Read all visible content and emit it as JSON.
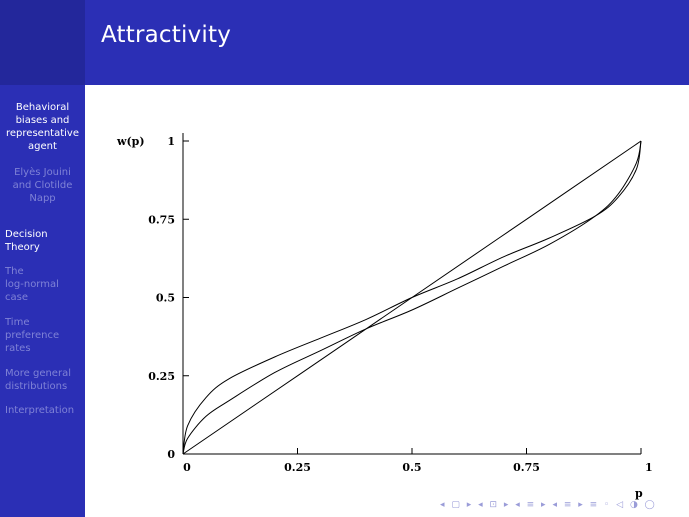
{
  "frame": {
    "title": "Attractivity"
  },
  "sidebar": {
    "talk_title": [
      "Behavioral",
      "biases and",
      "representative",
      "agent"
    ],
    "authors": [
      "Elyès Jouini",
      "and Clotilde",
      "Napp"
    ],
    "sections": [
      {
        "lines": [
          "Decision",
          "Theory"
        ],
        "active": true
      },
      {
        "lines": [
          "The",
          "log-normal",
          "case"
        ],
        "active": false
      },
      {
        "lines": [
          "Time",
          "preference",
          "rates"
        ],
        "active": false
      },
      {
        "lines": [
          "More general",
          "distributions"
        ],
        "active": false
      },
      {
        "lines": [
          "Interpretation"
        ],
        "active": false
      }
    ]
  },
  "navigation": {
    "symbols": "◂ ▢ ▸ ◂ ⊡ ▸ ◂ ≡ ▸ ◂ ≡ ▸ ≡ ◦ ◁ ◑ ◯"
  },
  "chart_data": {
    "type": "line",
    "xlabel": "p",
    "ylabel": "w(p)",
    "xlim": [
      0,
      1
    ],
    "ylim": [
      0,
      1
    ],
    "x_ticks": [
      "0",
      "0.25",
      "0.5",
      "0.75",
      "1"
    ],
    "y_ticks": [
      "0",
      "0.25",
      "0.5",
      "0.75",
      "1"
    ],
    "grid": false,
    "series": [
      {
        "x": [
          0,
          0.25,
          0.5,
          0.75,
          1
        ],
        "y": [
          0,
          0.25,
          0.5,
          0.75,
          1
        ]
      },
      {
        "x": [
          0,
          0.01,
          0.05,
          0.1,
          0.2,
          0.3,
          0.4,
          0.5,
          0.6,
          0.7,
          0.8,
          0.9,
          0.95,
          0.99,
          1
        ],
        "y": [
          0,
          0.09,
          0.18,
          0.24,
          0.31,
          0.37,
          0.43,
          0.5,
          0.56,
          0.63,
          0.69,
          0.76,
          0.82,
          0.91,
          1
        ]
      },
      {
        "x": [
          0,
          0.01,
          0.05,
          0.1,
          0.2,
          0.3,
          0.4,
          0.5,
          0.6,
          0.7,
          0.8,
          0.9,
          0.95,
          0.99,
          1
        ],
        "y": [
          0,
          0.05,
          0.12,
          0.17,
          0.26,
          0.33,
          0.4,
          0.46,
          0.53,
          0.6,
          0.67,
          0.76,
          0.83,
          0.93,
          1
        ]
      }
    ]
  }
}
